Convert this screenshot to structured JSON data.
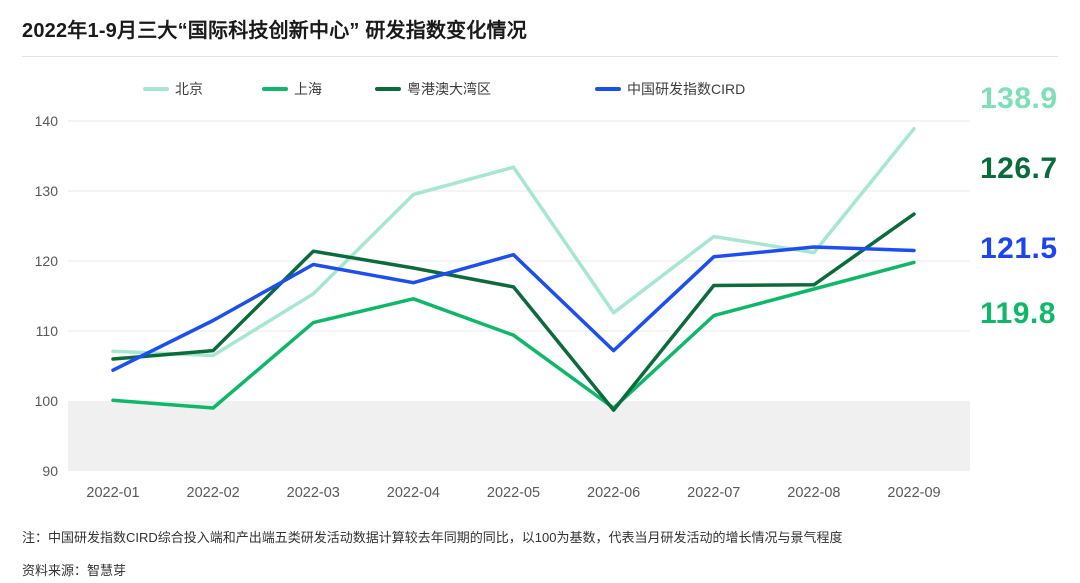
{
  "header": {
    "title": "2022年1-9月三大“国际科技创新中心” 研发指数变化情况"
  },
  "footer": {
    "note": "注：中国研发指数CIRD综合投入端和产出端五类研发活动数据计算较去年同期的同比，以100为基数，代表当月研发活动的增长情况与景气程度",
    "source": "资料来源：智慧芽"
  },
  "colors": {
    "grid": "#e9e9e9",
    "band_fill": "#f0f0f0",
    "axis_text": "#595959",
    "divider": "#e3e3e3"
  },
  "chart_data": {
    "type": "line",
    "title": "2022年1-9月三大“国际科技创新中心” 研发指数变化情况",
    "categories": [
      "2022-01",
      "2022-02",
      "2022-03",
      "2022-04",
      "2022-05",
      "2022-06",
      "2022-07",
      "2022-08",
      "2022-09"
    ],
    "yticks": [
      140,
      130,
      120,
      110,
      100,
      90
    ],
    "y_gridlines": [
      140,
      130,
      120,
      110
    ],
    "ylim": [
      90,
      145
    ],
    "shaded_band": {
      "from": 90,
      "to": 100
    },
    "legend_position": "top",
    "grid": "horizontal only",
    "series": [
      {
        "id": "beijing",
        "name": "北京",
        "color": "#A6E8CF",
        "label_color": "#7FDFB7",
        "end_label": "138.9",
        "values": [
          107.1,
          106.5,
          115.3,
          129.5,
          133.4,
          112.6,
          123.5,
          121.2,
          138.9
        ]
      },
      {
        "id": "shanghai",
        "name": "上海",
        "color": "#0DB868",
        "label_color": "#0DB868",
        "end_label": "119.8",
        "values": [
          100.1,
          99.0,
          111.2,
          114.6,
          109.4,
          99.0,
          112.2,
          116.0,
          119.8
        ]
      },
      {
        "id": "gba",
        "name": "粤港澳大湾区",
        "color": "#0C6B3D",
        "label_color": "#0A6B3C",
        "end_label": "126.7",
        "values": [
          106.0,
          107.2,
          121.4,
          119.0,
          116.3,
          98.7,
          116.5,
          116.6,
          126.7
        ]
      },
      {
        "id": "cird",
        "name": "中国研发指数CIRD",
        "color": "#1C4EF2",
        "label_color": "#1B45F2",
        "end_label": "121.5",
        "values": [
          104.4,
          111.5,
          119.5,
          116.9,
          120.9,
          107.2,
          120.6,
          122.0,
          121.5
        ]
      }
    ]
  }
}
